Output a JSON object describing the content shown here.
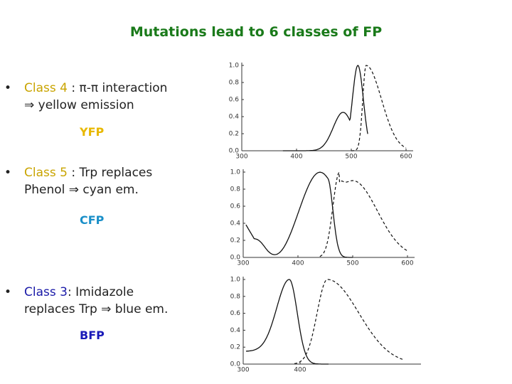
{
  "title": "Mutations lead to 6 classes of FP",
  "bullets": [
    {
      "label": "Class 4",
      "text": " : π-π interaction",
      "line2": "⇒ yellow emission",
      "tag": "YFP"
    },
    {
      "label": "Class 5",
      "text": " : Trp replaces",
      "line2": "Phenol ⇒ cyan em.",
      "tag": "CFP"
    },
    {
      "label": "Class 3",
      "text": ": Imidazole",
      "line2": "replaces Trp ⇒ blue em.",
      "tag": "BFP"
    }
  ],
  "spectra": [
    {
      "yticks": [
        "1.0",
        "0.8",
        "0.6",
        "0.4",
        "0.2",
        "0.0"
      ],
      "xticks": [
        "300",
        "400",
        "500",
        "600"
      ]
    },
    {
      "yticks": [
        "1.0",
        "0.8",
        "0.6",
        "0.4",
        "0.2",
        "0.0"
      ],
      "xticks": [
        "300",
        "400",
        "500",
        "600"
      ]
    },
    {
      "yticks": [
        "1.0",
        "0.8",
        "0.6",
        "0.4",
        "0.2",
        "0.0"
      ],
      "xticks": [
        "300",
        "400"
      ]
    }
  ]
}
